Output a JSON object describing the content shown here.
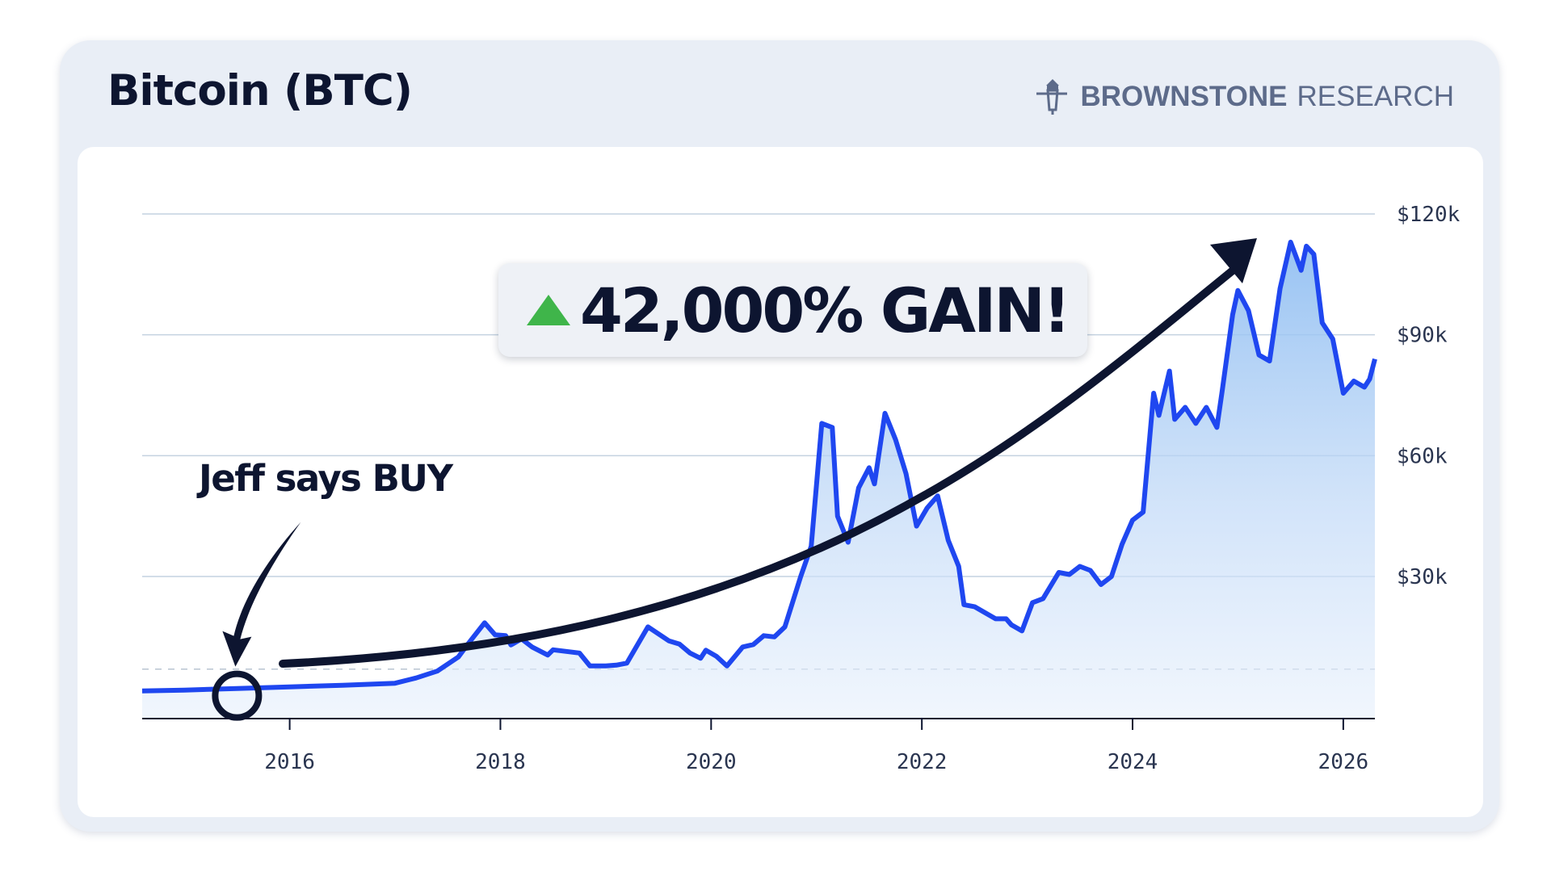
{
  "header": {
    "title": "Bitcoin (BTC)",
    "brand_bold": "BROWNSTONE",
    "brand_light": "RESEARCH",
    "brand_icon": "lighthouse-icon"
  },
  "annotations": {
    "gain": "42,000% GAIN!",
    "gain_icon": "up-triangle-icon",
    "buy": "Jeff says BUY"
  },
  "colors": {
    "line": "#1f47f0",
    "gain_arrow": "#3fb54a",
    "text": "#0d1530"
  },
  "chart_data": {
    "type": "area",
    "title": "Bitcoin (BTC)",
    "xlabel": "",
    "ylabel": "",
    "xlim": [
      2014.6,
      2026.3
    ],
    "ylim": [
      0,
      120000
    ],
    "x_ticks": [
      2016,
      2018,
      2020,
      2022,
      2024,
      2026
    ],
    "x_tick_labels": [
      "2016",
      "2018",
      "2020",
      "2022",
      "2024",
      "2026"
    ],
    "y_ticks": [
      30000,
      60000,
      90000,
      120000
    ],
    "y_tick_labels": [
      "$30k",
      "$60k",
      "$90k",
      "$120k"
    ],
    "baseline_dashed": 7000,
    "grid": "horizontal",
    "buy_point": {
      "x": 2015.5,
      "y": 400
    },
    "series": [
      {
        "x": [
          2014.6,
          2015.0,
          2015.5,
          2016.0,
          2016.5,
          2017.0,
          2017.2,
          2017.4,
          2017.6,
          2017.7,
          2017.85,
          2017.95,
          2018.05,
          2018.1,
          2018.2,
          2018.3,
          2018.45,
          2018.5,
          2018.75,
          2018.85,
          2019.0,
          2019.1,
          2019.2,
          2019.4,
          2019.6,
          2019.7,
          2019.8,
          2019.9,
          2019.95,
          2020.05,
          2020.15,
          2020.3,
          2020.4,
          2020.5,
          2020.6,
          2020.7,
          2020.85,
          2020.95,
          2021.05,
          2021.15,
          2021.2,
          2021.3,
          2021.4,
          2021.5,
          2021.55,
          2021.65,
          2021.75,
          2021.85,
          2021.95,
          2022.05,
          2022.15,
          2022.25,
          2022.35,
          2022.4,
          2022.5,
          2022.6,
          2022.7,
          2022.8,
          2022.85,
          2022.95,
          2023.05,
          2023.15,
          2023.3,
          2023.4,
          2023.5,
          2023.6,
          2023.7,
          2023.8,
          2023.9,
          2024.0,
          2024.1,
          2024.2,
          2024.25,
          2024.35,
          2024.4,
          2024.5,
          2024.6,
          2024.7,
          2024.8,
          2024.85,
          2024.95,
          2025.0,
          2025.1,
          2025.2,
          2025.3,
          2025.4,
          2025.5,
          2025.6,
          2025.65,
          2025.72,
          2025.8,
          2025.9,
          2026.0,
          2026.1,
          2026.2,
          2026.25,
          2026.3
        ],
        "y": [
          1600,
          1800,
          2200,
          2600,
          3000,
          3500,
          4800,
          6500,
          10000,
          13500,
          18500,
          15500,
          15300,
          13000,
          14500,
          12500,
          10500,
          11800,
          11000,
          7800,
          7800,
          8000,
          8500,
          17500,
          14000,
          13200,
          11000,
          9700,
          11700,
          10200,
          7800,
          12500,
          13100,
          15300,
          15000,
          17500,
          30000,
          37500,
          68000,
          67000,
          45000,
          38500,
          52000,
          57000,
          53000,
          70500,
          64000,
          55500,
          42500,
          47000,
          50000,
          39000,
          32500,
          23000,
          22500,
          21000,
          19500,
          19500,
          18000,
          16500,
          23500,
          24500,
          31000,
          30500,
          32500,
          31500,
          28000,
          30000,
          38000,
          44000,
          46000,
          75500,
          70000,
          81000,
          69000,
          72000,
          68000,
          72000,
          67000,
          76000,
          95000,
          101000,
          96000,
          85000,
          83500,
          101500,
          113000,
          106000,
          112000,
          110000,
          93000,
          89000,
          75500,
          78500,
          77000,
          79000,
          84000
        ]
      }
    ]
  }
}
